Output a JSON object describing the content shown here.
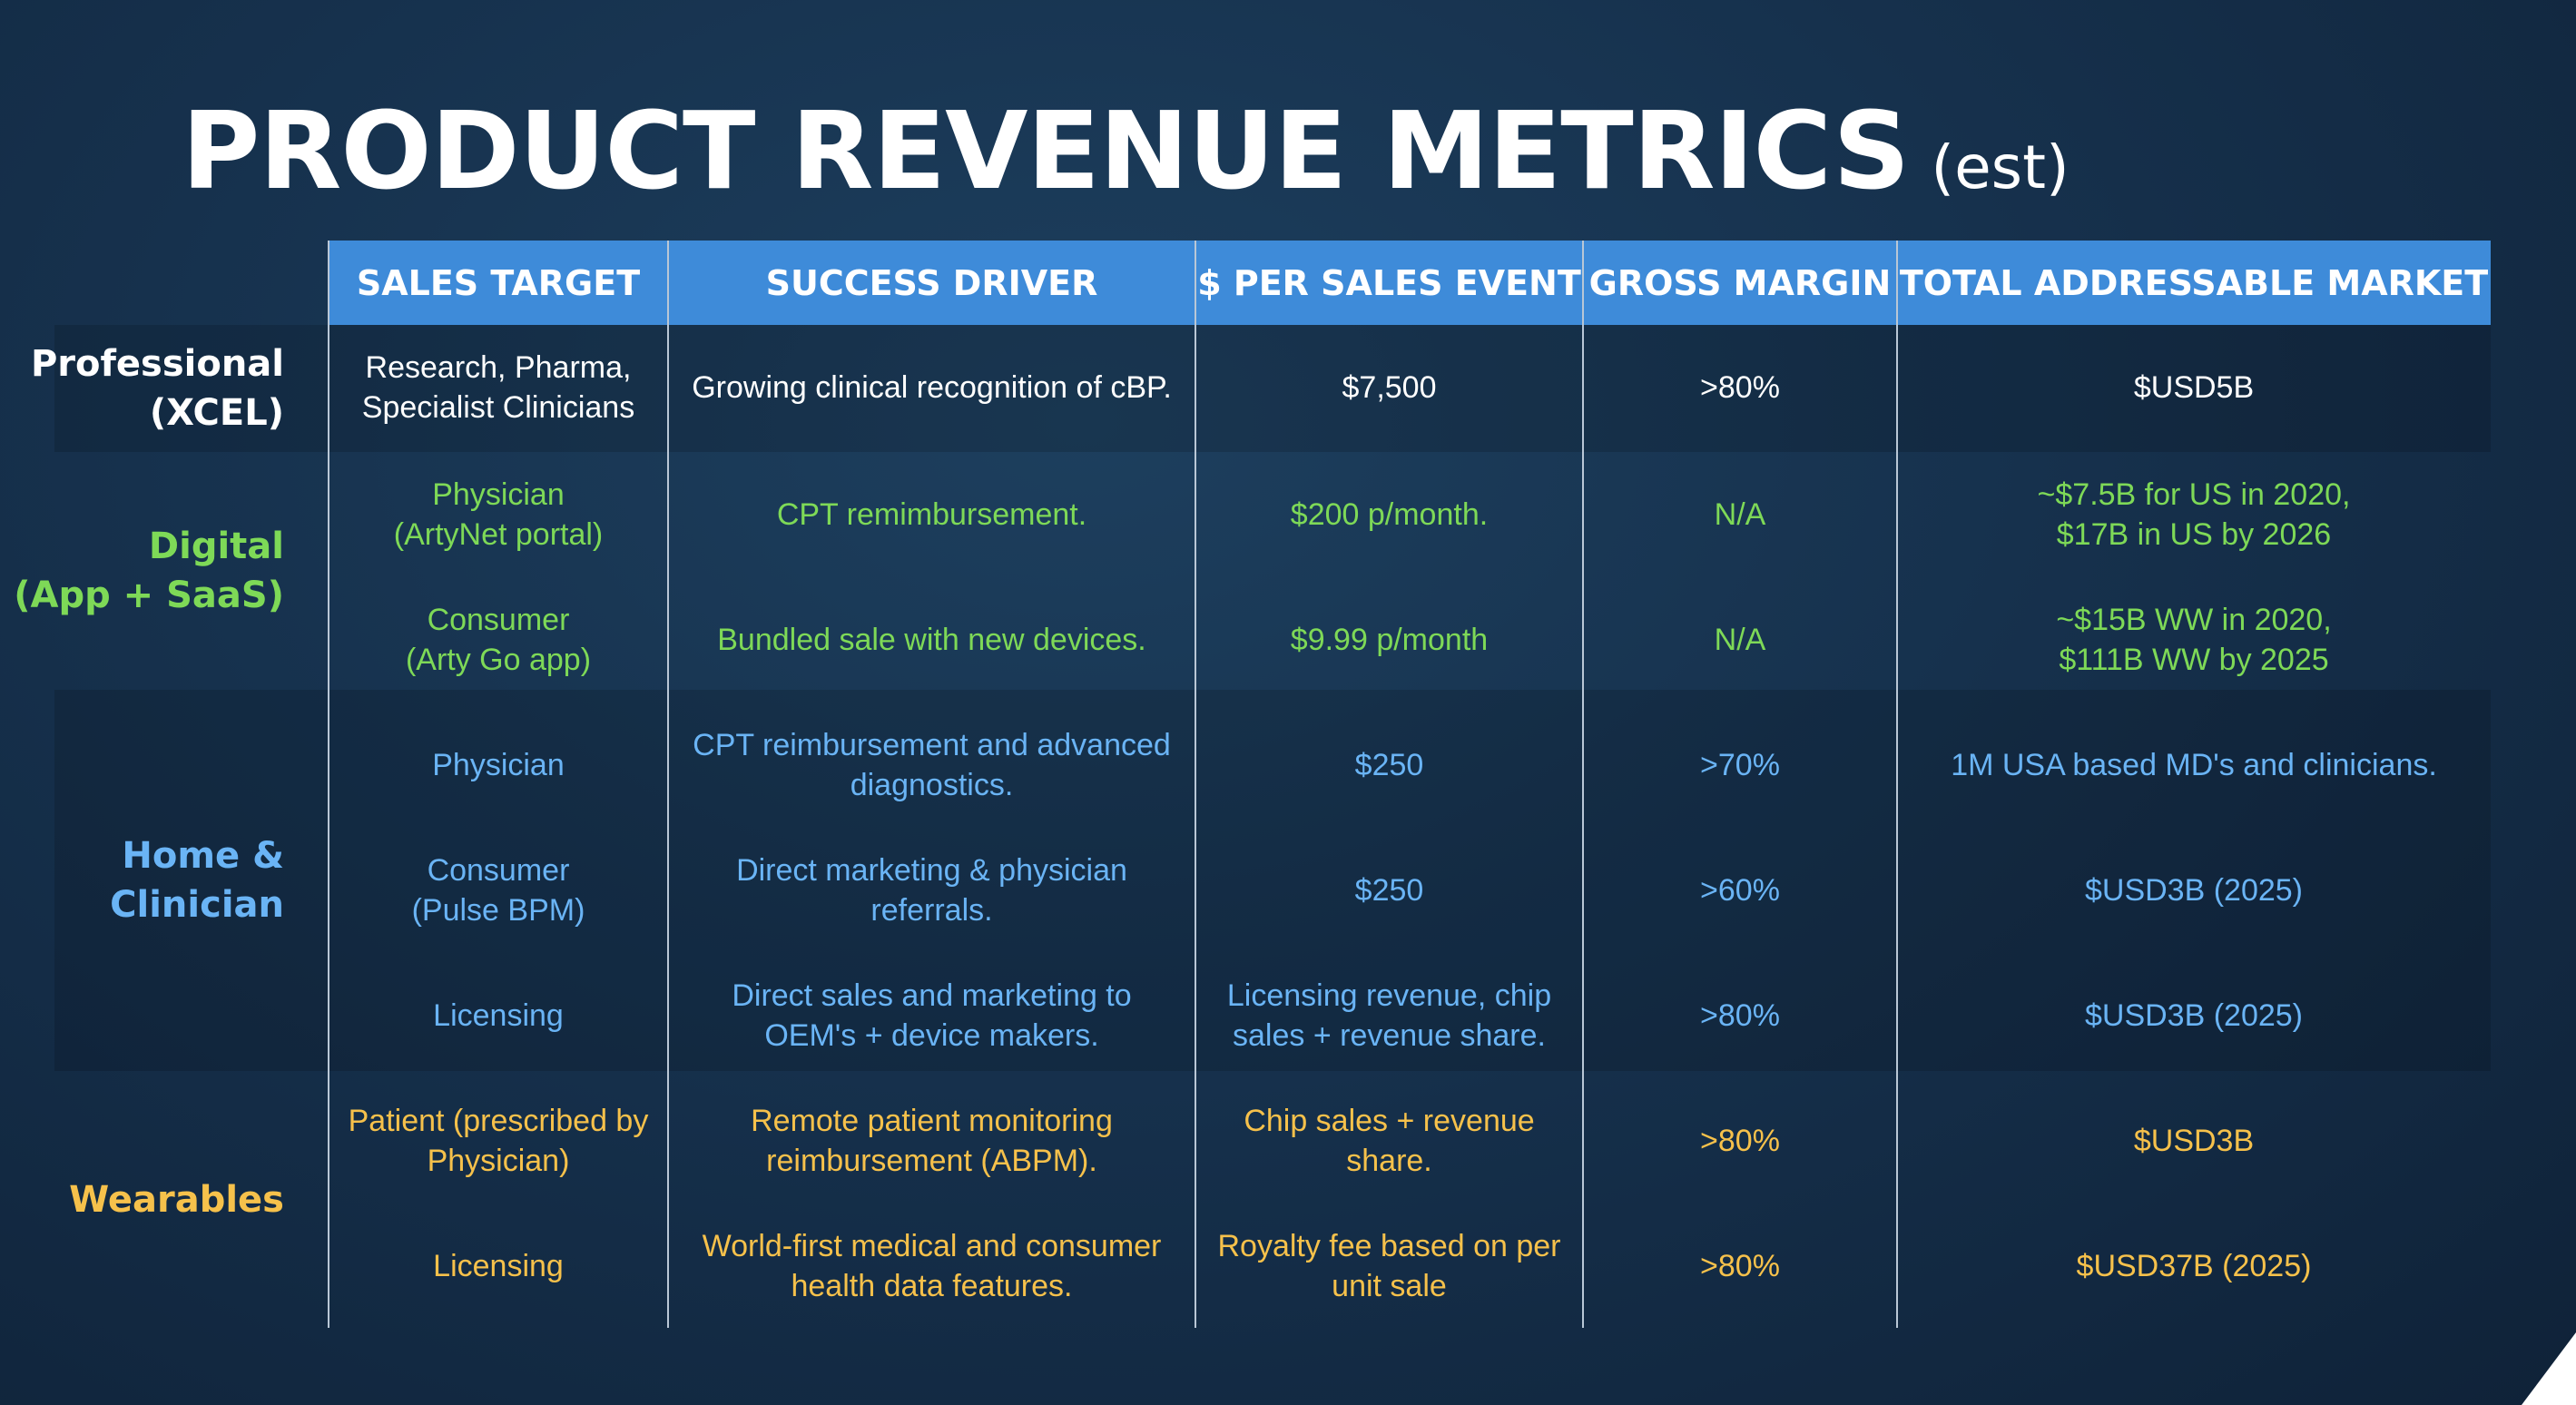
{
  "title": {
    "main": "PRODUCT REVENUE METRICS",
    "sub": "(est)"
  },
  "colors": {
    "header_bg": "#3e8bd9",
    "professional": "#ffffff",
    "digital": "#7ed957",
    "home_clinician": "#6ab4f5",
    "wearables": "#f6c14b"
  },
  "headers": [
    "SALES TARGET",
    "SUCCESS DRIVER",
    "$ PER SALES EVENT",
    "GROSS MARGIN",
    "TOTAL ADDRESSABLE MARKET"
  ],
  "groups": [
    {
      "label_line1": "Professional",
      "label_line2": "(XCEL)"
    },
    {
      "label_line1": "Digital",
      "label_line2": "(App + SaaS)"
    },
    {
      "label_line1": "Home &",
      "label_line2": "Clinician"
    },
    {
      "label_line1": "Wearables",
      "label_line2": ""
    }
  ],
  "rows": [
    {
      "cells": [
        "Research, Pharma,\nSpecialist Clinicians",
        "Growing clinical recognition of cBP.",
        "$7,500",
        ">80%",
        "$USD5B"
      ]
    },
    {
      "cells": [
        "Physician\n(ArtyNet portal)",
        "CPT remimbursement.",
        "$200 p/month.",
        "N/A",
        "~$7.5B for US in 2020,\n$17B in US by 2026"
      ]
    },
    {
      "cells": [
        "Consumer\n(Arty Go app)",
        "Bundled sale with new devices.",
        "$9.99 p/month",
        "N/A",
        "~$15B WW in 2020,\n$111B WW by 2025"
      ]
    },
    {
      "cells": [
        "Physician",
        "CPT reimbursement and advanced\ndiagnostics.",
        "$250",
        ">70%",
        "1M USA based MD's and clinicians."
      ]
    },
    {
      "cells": [
        "Consumer\n(Pulse BPM)",
        "Direct marketing & physician\nreferrals.",
        "$250",
        ">60%",
        "$USD3B (2025)"
      ]
    },
    {
      "cells": [
        "Licensing",
        "Direct sales and marketing to\nOEM's + device makers.",
        "Licensing revenue, chip\nsales + revenue share.",
        ">80%",
        "$USD3B (2025)"
      ]
    },
    {
      "cells": [
        "Patient (prescribed by\nPhysician)",
        "Remote patient monitoring\nreimbursement (ABPM).",
        "Chip sales + revenue\nshare.",
        ">80%",
        "$USD3B"
      ]
    },
    {
      "cells": [
        "Licensing",
        "World-first medical and consumer\nhealth data features.",
        "Royalty fee based on per\nunit sale",
        ">80%",
        "$USD37B (2025)"
      ]
    }
  ]
}
